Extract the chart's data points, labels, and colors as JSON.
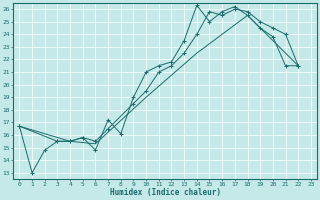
{
  "title": "",
  "xlabel": "Humidex (Indice chaleur)",
  "bg_color": "#c5e8e8",
  "line_color": "#1a6b6b",
  "grid_color": "#ffffff",
  "xlim": [
    -0.5,
    23.5
  ],
  "ylim": [
    12.5,
    26.5
  ],
  "xticks": [
    0,
    1,
    2,
    3,
    4,
    5,
    6,
    7,
    8,
    9,
    10,
    11,
    12,
    13,
    14,
    15,
    16,
    17,
    18,
    19,
    20,
    21,
    22,
    23
  ],
  "yticks": [
    13,
    14,
    15,
    16,
    17,
    18,
    19,
    20,
    21,
    22,
    23,
    24,
    25,
    26
  ],
  "series1": [
    [
      0,
      16.7
    ],
    [
      1,
      13.0
    ],
    [
      2,
      14.8
    ],
    [
      3,
      15.5
    ],
    [
      4,
      15.5
    ],
    [
      5,
      15.8
    ],
    [
      6,
      14.8
    ],
    [
      7,
      17.2
    ],
    [
      8,
      16.1
    ],
    [
      9,
      19.0
    ],
    [
      10,
      21.0
    ],
    [
      11,
      21.5
    ],
    [
      12,
      21.8
    ],
    [
      13,
      23.5
    ],
    [
      14,
      26.3
    ],
    [
      15,
      25.0
    ],
    [
      16,
      25.8
    ],
    [
      17,
      26.2
    ],
    [
      18,
      25.5
    ],
    [
      19,
      24.5
    ],
    [
      20,
      23.8
    ],
    [
      21,
      21.5
    ],
    [
      22,
      21.5
    ]
  ],
  "series2": [
    [
      0,
      16.7
    ],
    [
      3,
      15.5
    ],
    [
      4,
      15.5
    ],
    [
      5,
      15.8
    ],
    [
      6,
      15.5
    ],
    [
      7,
      16.5
    ],
    [
      9,
      18.5
    ],
    [
      10,
      19.5
    ],
    [
      11,
      21.0
    ],
    [
      12,
      21.5
    ],
    [
      13,
      22.5
    ],
    [
      14,
      24.0
    ],
    [
      15,
      25.8
    ],
    [
      16,
      25.5
    ],
    [
      17,
      26.0
    ],
    [
      18,
      25.8
    ],
    [
      19,
      25.0
    ],
    [
      20,
      24.5
    ],
    [
      21,
      24.0
    ],
    [
      22,
      21.5
    ]
  ],
  "series3": [
    [
      0,
      16.7
    ],
    [
      4,
      15.5
    ],
    [
      6,
      15.3
    ],
    [
      10,
      19.0
    ],
    [
      14,
      22.5
    ],
    [
      18,
      25.5
    ],
    [
      22,
      21.5
    ]
  ]
}
